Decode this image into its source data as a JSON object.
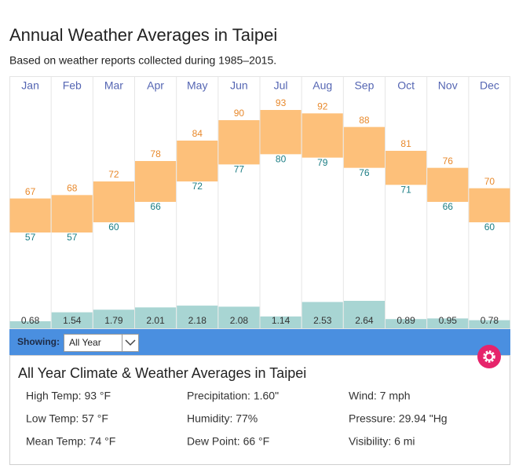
{
  "chart_data": {
    "type": "range",
    "title": "Annual Weather Averages in Taipei",
    "subtitle": "Based on weather reports collected during 1985–2015.",
    "categories": [
      "Jan",
      "Feb",
      "Mar",
      "Apr",
      "May",
      "Jun",
      "Jul",
      "Aug",
      "Sep",
      "Oct",
      "Nov",
      "Dec"
    ],
    "series": [
      {
        "color": "#fdc07a",
        "label_color": "#e8892c",
        "values": [
          67,
          68,
          72,
          78,
          84,
          90,
          93,
          92,
          88,
          81,
          76,
          70
        ]
      },
      {
        "color": "#fdc07a",
        "label_color": "#1b7d84",
        "values": [
          57,
          57,
          60,
          66,
          72,
          77,
          80,
          79,
          76,
          71,
          66,
          60
        ]
      },
      {
        "type": "bar",
        "color": "#a8d5d3",
        "label_color": "#333333",
        "values": [
          0.68,
          1.54,
          1.79,
          2.01,
          2.18,
          2.08,
          1.14,
          2.53,
          2.64,
          0.89,
          0.95,
          0.78
        ]
      }
    ]
  },
  "controls": {
    "label": "Showing:",
    "selected": "All Year"
  },
  "summary": {
    "title": "All Year Climate & Weather Averages in Taipei",
    "columns": [
      [
        "High Temp: 93 °F",
        "Low Temp: 57 °F",
        "Mean Temp: 74 °F"
      ],
      [
        "Precipitation: 1.60\"",
        "Humidity: 77%",
        "Dew Point: 66 °F"
      ],
      [
        "Wind: 7 mph",
        "Pressure: 29.94 \"Hg",
        "Visibility: 6 mi"
      ]
    ]
  }
}
